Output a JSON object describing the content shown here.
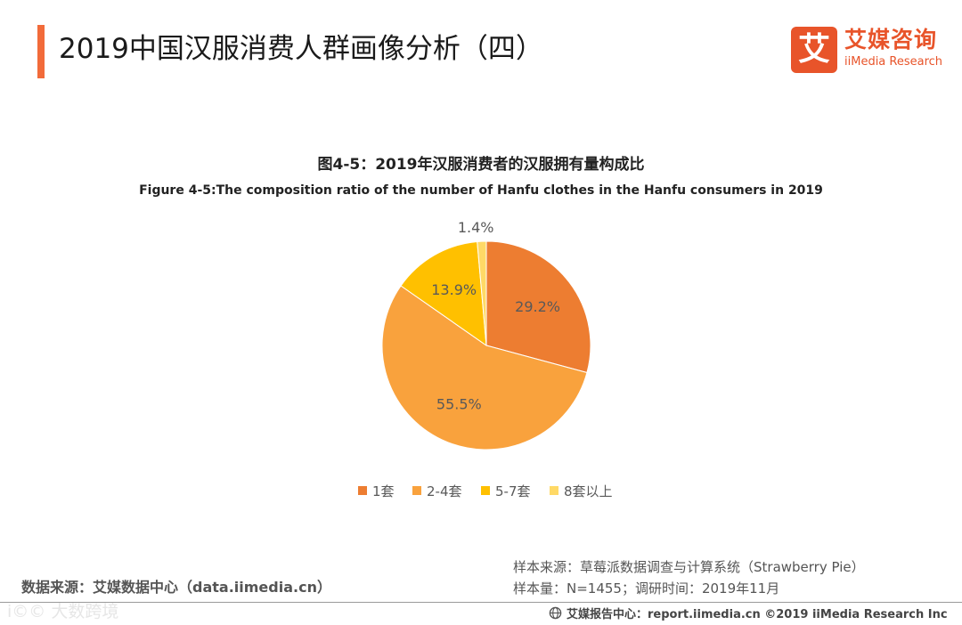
{
  "header": {
    "title": "2019中国汉服消费人群画像分析（四）",
    "accent_color": "#f26b3a"
  },
  "logo": {
    "mark_glyph": "艾",
    "name_cn": "艾媒咨询",
    "name_en": "iiMedia Research",
    "color": "#e8542a"
  },
  "chart_data": {
    "type": "pie",
    "title": "图4-5：2019年汉服消费者的汉服拥有量构成比",
    "subtitle": "Figure 4-5:The composition  ratio of the number of Hanfu clothes in the Hanfu consumers in 2019",
    "categories": [
      "1套",
      "2-4套",
      "5-7套",
      "8套以上"
    ],
    "values": [
      29.2,
      55.5,
      13.9,
      1.4
    ],
    "labels": [
      "29.2%",
      "55.5%",
      "13.9%",
      "1.4%"
    ],
    "colors": [
      "#ed7d31",
      "#f9a23d",
      "#ffc000",
      "#ffd966"
    ],
    "legend_position": "bottom",
    "start_angle": "12 o'clock",
    "direction": "clockwise"
  },
  "footer": {
    "source_left": "数据来源：艾媒数据中心（data.iimedia.cn）",
    "sample_source": "样本来源：草莓派数据调查与计算系统（Strawberry Pie）",
    "sample_size": "样本量：N=1455；调研时间：2019年11月",
    "report_center": "艾媒报告中心：report.iimedia.cn  ©2019  iiMedia Research  Inc",
    "watermark": "i©© 大数跨境"
  }
}
